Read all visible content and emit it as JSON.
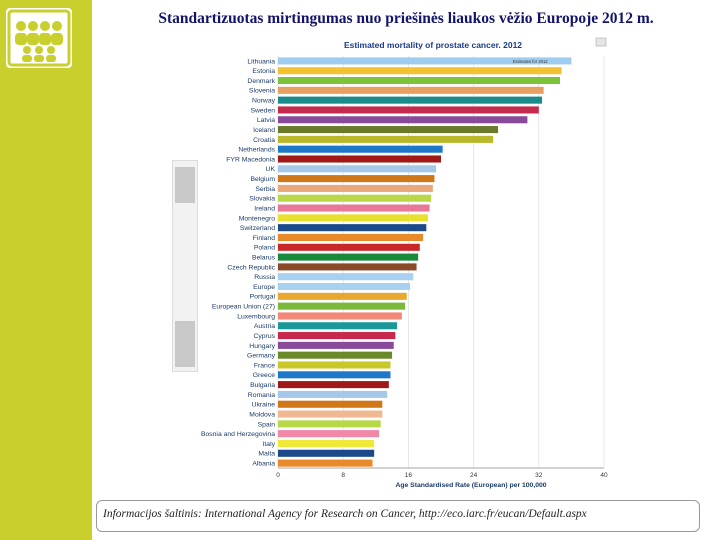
{
  "slide": {
    "title": "Standartizuotas mirtingumas nuo priešinės liaukos vėžio Europoje 2012 m.",
    "source": "Informacijos šaltinis: International Agency for Research on Cancer, http://eco.iarc.fr/eucan/Default.aspx"
  },
  "colors": {
    "band": "#c9cf2c",
    "title": "#13136b"
  },
  "logo": {
    "icon": "people-group-icon"
  },
  "chart_data": {
    "type": "bar",
    "orientation": "horizontal",
    "title": "Estimated mortality of prostate cancer. 2012",
    "xlabel": "Age Standardised Rate (European) per 100,000",
    "xticks": [
      "0",
      "8",
      "16",
      "24",
      "32",
      "40"
    ],
    "xlim": [
      0,
      40
    ],
    "grid": true,
    "legend_note": "Estimates for 2012",
    "categories": [
      "Lithuania",
      "Estonia",
      "Denmark",
      "Slovenia",
      "Norway",
      "Sweden",
      "Latvia",
      "Iceland",
      "Croatia",
      "Netherlands",
      "FYR Macedonia",
      "UK",
      "Belgium",
      "Serbia",
      "Slovakia",
      "Ireland",
      "Montenegro",
      "Switzerland",
      "Finland",
      "Poland",
      "Belarus",
      "Czech Republic",
      "Russia",
      "Europe",
      "Portugal",
      "European Union (27)",
      "Luxembourg",
      "Austria",
      "Cyprus",
      "Hungary",
      "Germany",
      "France",
      "Greece",
      "Bulgaria",
      "Romania",
      "Ukraine",
      "Moldova",
      "Spain",
      "Bosnia and Herzegovina",
      "Italy",
      "Malta",
      "Albania"
    ],
    "values": [
      36.0,
      34.8,
      34.6,
      32.6,
      32.4,
      32.0,
      30.6,
      27.0,
      26.4,
      20.2,
      20.0,
      19.4,
      19.2,
      19.0,
      18.8,
      18.6,
      18.4,
      18.2,
      17.8,
      17.4,
      17.2,
      17.0,
      16.6,
      16.2,
      15.8,
      15.6,
      15.2,
      14.6,
      14.4,
      14.2,
      14.0,
      13.8,
      13.8,
      13.6,
      13.4,
      12.8,
      12.8,
      12.6,
      12.4,
      11.8,
      11.8,
      11.6
    ],
    "bar_colors": [
      "#9fcdf0",
      "#f2c230",
      "#7cc23a",
      "#e8a060",
      "#1a8c8c",
      "#c32a4c",
      "#8a4a9a",
      "#6a7a2a",
      "#b8b82a",
      "#1e78c8",
      "#a01818",
      "#a6c8e8",
      "#d07818",
      "#e8a87a",
      "#b8d848",
      "#e87898",
      "#e8e030",
      "#1a4a8a",
      "#e88a2a",
      "#c82828",
      "#1a8a3a",
      "#8a4a28",
      "#a8d0f0",
      "#a8d0f0",
      "#e8a830",
      "#7cb83a",
      "#f28878",
      "#1a9898",
      "#c8284c",
      "#8a4a9a",
      "#6a8a2a",
      "#c8c828",
      "#1e78c8",
      "#a01818",
      "#a6c8e8",
      "#d07818",
      "#f0b890",
      "#b8d848",
      "#f088a8",
      "#f0e838",
      "#1a4a8a",
      "#e88a2a"
    ]
  }
}
